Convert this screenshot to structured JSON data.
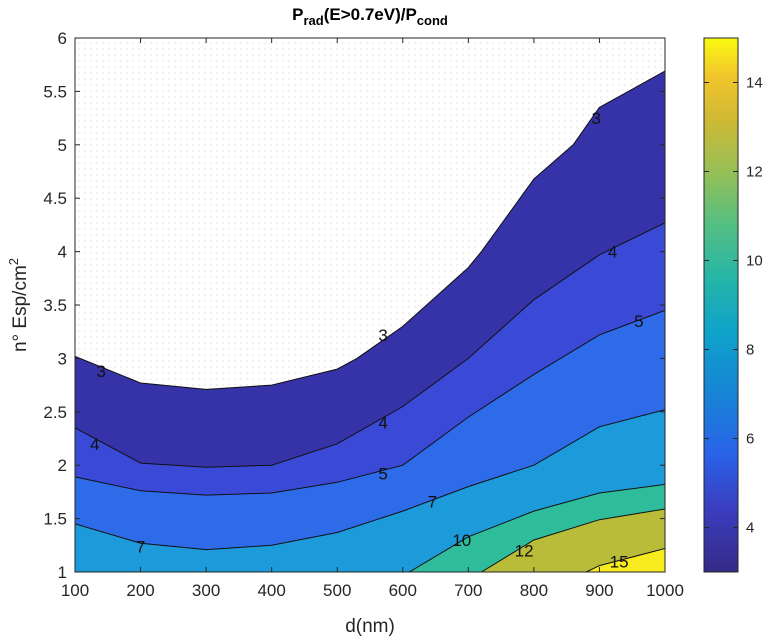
{
  "chart_data": {
    "type": "contour",
    "title_parts": {
      "P1": "P",
      "sub1": "rad",
      "mid": "(E>0.7eV)/P",
      "sub2": "cond"
    },
    "xlabel": "d(nm)",
    "ylabel_parts": {
      "base": "n° Esp/cm",
      "sup": "2"
    },
    "xlim": [
      100,
      1000
    ],
    "ylim": [
      1,
      6
    ],
    "xticks": [
      100,
      200,
      300,
      400,
      500,
      600,
      700,
      800,
      900,
      1000
    ],
    "yticks": [
      1,
      1.5,
      2,
      2.5,
      3,
      3.5,
      4,
      4.5,
      5,
      5.5,
      6
    ],
    "xtick_labels": [
      "100",
      "200",
      "300",
      "400",
      "500",
      "600",
      "700",
      "800",
      "900",
      "1000"
    ],
    "ytick_labels": [
      "1",
      "1.5",
      "2",
      "2.5",
      "3",
      "3.5",
      "4",
      "4.5",
      "5",
      "5.5",
      "6"
    ],
    "grid": "dotted",
    "colorbar": {
      "colormap": "parula",
      "range": [
        3,
        15
      ],
      "ticks": [
        4,
        6,
        8,
        10,
        12,
        14
      ],
      "tick_labels": [
        "4",
        "6",
        "8",
        "10",
        "12",
        "14"
      ]
    },
    "contours": [
      {
        "level": 3,
        "label": "3",
        "color": "#352a87",
        "points": [
          [
            100,
            3.02
          ],
          [
            200,
            2.77
          ],
          [
            300,
            2.71
          ],
          [
            400,
            2.75
          ],
          [
            500,
            2.9
          ],
          [
            530,
            3.0
          ],
          [
            600,
            3.3
          ],
          [
            700,
            3.85
          ],
          [
            720,
            4.0
          ],
          [
            800,
            4.68
          ],
          [
            860,
            5.0
          ],
          [
            900,
            5.35
          ],
          [
            1000,
            5.69
          ]
        ],
        "label_positions": [
          [
            140,
            2.88
          ],
          [
            570,
            3.22
          ],
          [
            895,
            5.25
          ]
        ]
      },
      {
        "level": 4,
        "label": "4",
        "color": "#3745c9",
        "points": [
          [
            100,
            2.35
          ],
          [
            200,
            2.02
          ],
          [
            300,
            1.98
          ],
          [
            400,
            2.0
          ],
          [
            500,
            2.2
          ],
          [
            600,
            2.55
          ],
          [
            700,
            3.0
          ],
          [
            800,
            3.55
          ],
          [
            900,
            3.97
          ],
          [
            1000,
            4.27
          ]
        ],
        "label_positions": [
          [
            130,
            2.2
          ],
          [
            570,
            2.4
          ],
          [
            920,
            4.0
          ]
        ]
      },
      {
        "level": 5,
        "label": "5",
        "color": "#3a5cec",
        "points": [
          [
            100,
            1.89
          ],
          [
            200,
            1.76
          ],
          [
            300,
            1.72
          ],
          [
            400,
            1.74
          ],
          [
            500,
            1.84
          ],
          [
            600,
            2.0
          ],
          [
            700,
            2.45
          ],
          [
            800,
            2.85
          ],
          [
            900,
            3.22
          ],
          [
            1000,
            3.45
          ]
        ],
        "label_positions": [
          [
            570,
            1.92
          ],
          [
            960,
            3.35
          ]
        ]
      },
      {
        "level": 7,
        "label": "7",
        "color": "#1d8cde",
        "points": [
          [
            100,
            1.45
          ],
          [
            200,
            1.27
          ],
          [
            300,
            1.21
          ],
          [
            400,
            1.25
          ],
          [
            500,
            1.37
          ],
          [
            600,
            1.57
          ],
          [
            700,
            1.8
          ],
          [
            800,
            2.0
          ],
          [
            900,
            2.36
          ],
          [
            1000,
            2.52
          ]
        ],
        "label_positions": [
          [
            200,
            1.24
          ],
          [
            645,
            1.66
          ]
        ]
      },
      {
        "level": 10,
        "label": "10",
        "color": "#31bc9b",
        "points": [
          [
            610,
            1.0
          ],
          [
            700,
            1.33
          ],
          [
            800,
            1.57
          ],
          [
            900,
            1.74
          ],
          [
            1000,
            1.82
          ]
        ],
        "label_positions": [
          [
            690,
            1.3
          ]
        ]
      },
      {
        "level": 12,
        "label": "12",
        "color": "#c3bd31",
        "points": [
          [
            720,
            1.0
          ],
          [
            800,
            1.3
          ],
          [
            900,
            1.49
          ],
          [
            1000,
            1.59
          ]
        ],
        "label_positions": [
          [
            785,
            1.2
          ]
        ]
      },
      {
        "level": 15,
        "label": "15",
        "color": "#f5e81c",
        "points": [
          [
            880,
            1.0
          ],
          [
            900,
            1.06
          ],
          [
            1000,
            1.22
          ]
        ],
        "label_positions": [
          [
            930,
            1.1
          ]
        ]
      }
    ],
    "base_fill": "#ffffff",
    "band_below_7": "#1fa1d8"
  }
}
